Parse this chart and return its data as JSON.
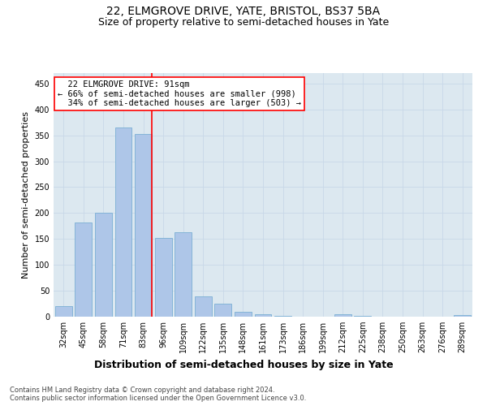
{
  "title": "22, ELMGROVE DRIVE, YATE, BRISTOL, BS37 5BA",
  "subtitle": "Size of property relative to semi-detached houses in Yate",
  "xlabel": "Distribution of semi-detached houses by size in Yate",
  "ylabel": "Number of semi-detached properties",
  "footnote1": "Contains HM Land Registry data © Crown copyright and database right 2024.",
  "footnote2": "Contains public sector information licensed under the Open Government Licence v3.0.",
  "bar_labels": [
    "32sqm",
    "45sqm",
    "58sqm",
    "71sqm",
    "83sqm",
    "96sqm",
    "109sqm",
    "122sqm",
    "135sqm",
    "148sqm",
    "161sqm",
    "173sqm",
    "186sqm",
    "199sqm",
    "212sqm",
    "225sqm",
    "238sqm",
    "250sqm",
    "263sqm",
    "276sqm",
    "289sqm"
  ],
  "bar_values": [
    21,
    182,
    201,
    365,
    352,
    152,
    163,
    39,
    25,
    10,
    4,
    2,
    0,
    0,
    5,
    2,
    0,
    0,
    0,
    0,
    3
  ],
  "bar_color": "#aec6e8",
  "bar_edge_color": "#7aafd4",
  "red_line_bar_index": 4,
  "marker_label": "22 ELMGROVE DRIVE: 91sqm",
  "marker_smaller_pct": "66%",
  "marker_smaller_n": 998,
  "marker_larger_pct": "34%",
  "marker_larger_n": 503,
  "marker_color": "red",
  "annotation_box_color": "red",
  "ylim": [
    0,
    470
  ],
  "yticks": [
    0,
    50,
    100,
    150,
    200,
    250,
    300,
    350,
    400,
    450
  ],
  "grid_color": "#c8d8e8",
  "bg_color": "#dce8f0",
  "title_fontsize": 10,
  "subtitle_fontsize": 9,
  "ylabel_fontsize": 8,
  "xlabel_fontsize": 9,
  "tick_fontsize": 7,
  "annotation_fontsize": 7.5,
  "footnote_fontsize": 6
}
